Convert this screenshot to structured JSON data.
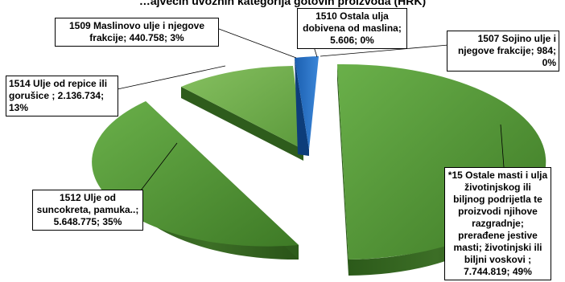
{
  "chart_data": {
    "type": "pie",
    "style": "3d-exploded",
    "title": "",
    "legend": "none",
    "slices": [
      {
        "name": "*15 Ostale masti i ulja životinjskog ili biljnog podrijetla te proizvodi njihove razgradnje; prerađene jestive masti; životinjski ili biljni voskovi",
        "value": 7744819,
        "percent": 49,
        "label": "*15 Ostale masti i ulja životinjskog ili biljnog podrijetla te proizvodi njihove razgradnje; prerađene jestive masti; životinjski ili biljni voskovi  ; 7.744.819; 49%",
        "color": "#4a8a2e"
      },
      {
        "name": "1512 Ulje od suncokreta, pamuka..",
        "value": 5648775,
        "percent": 35,
        "label": "1512 Ulje od suncokreta, pamuka..; 5.648.775; 35%",
        "color": "#4a8a2e"
      },
      {
        "name": "1514 Ulje od repice ili gorušice",
        "value": 2136734,
        "percent": 13,
        "label": "1514 Ulje od repice ili gorušice ; 2.136.734; 13%",
        "color": "#6aa548"
      },
      {
        "name": "1509 Maslinovo ulje i njegove frakcije",
        "value": 440758,
        "percent": 3,
        "label": "1509 Maslinovo ulje i njegove frakcije; 440.758; 3%",
        "color": "#1a63b8"
      },
      {
        "name": "1510 Ostala ulja dobivena od maslina",
        "value": 5606,
        "percent": 0,
        "label": "1510 Ostala ulja dobivena od maslina; 5.606; 0%",
        "color": "#4a7fc4"
      },
      {
        "name": "1507 Sojino ulje i njegove frakcije",
        "value": 984,
        "percent": 0,
        "label": "1507 Sojino ulje i njegove frakcije; 984; 0%",
        "color": "#7fa8d8"
      }
    ]
  },
  "title_fragment": "…ajvećih uvoznih kategorija gotovih proizvoda (HRK)"
}
